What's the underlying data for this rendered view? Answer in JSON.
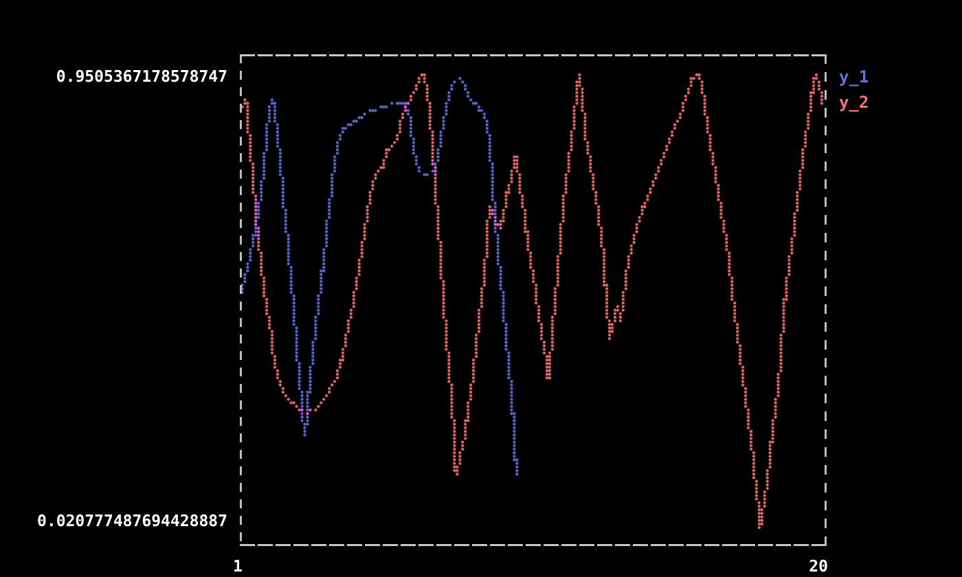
{
  "figure": {
    "background": "#000000",
    "border_color": "#c0c4ca",
    "text_color": "#ffffff"
  },
  "axes": {
    "y_max_label": "0.9505367178578747",
    "y_min_label": "0.020777487694428887",
    "x_min_label": "1",
    "x_max_label": "20"
  },
  "legend": {
    "position": "outside-right-top",
    "items": [
      {
        "label": "y_1",
        "color": "#6272dd"
      },
      {
        "label": "y_2",
        "color": "#f8736f"
      }
    ]
  },
  "chart_data": {
    "type": "scatter",
    "marker": "dot",
    "grid": false,
    "xlabel": "",
    "ylabel": "",
    "x_range": [
      1,
      20
    ],
    "y_range": [
      0.020777487694428887,
      0.9505367178578747
    ],
    "overlap_color": "#ee64d8",
    "series": [
      {
        "name": "y_1",
        "color": "#6170d9",
        "points": [
          [
            1.04,
            0.496
          ],
          [
            1.16,
            0.524
          ],
          [
            1.27,
            0.55
          ],
          [
            1.38,
            0.583
          ],
          [
            1.49,
            0.616
          ],
          [
            1.58,
            0.648
          ],
          [
            1.67,
            0.69
          ],
          [
            1.76,
            0.738
          ],
          [
            1.84,
            0.789
          ],
          [
            1.93,
            0.848
          ],
          [
            2.0,
            0.879
          ],
          [
            2.07,
            0.9
          ],
          [
            2.13,
            0.879
          ],
          [
            2.22,
            0.841
          ],
          [
            2.29,
            0.792
          ],
          [
            2.38,
            0.738
          ],
          [
            2.44,
            0.693
          ],
          [
            2.51,
            0.648
          ],
          [
            2.58,
            0.606
          ],
          [
            2.64,
            0.555
          ],
          [
            2.71,
            0.51
          ],
          [
            2.78,
            0.461
          ],
          [
            2.84,
            0.409
          ],
          [
            2.91,
            0.358
          ],
          [
            2.98,
            0.306
          ],
          [
            3.04,
            0.257
          ],
          [
            3.11,
            0.208
          ],
          [
            3.18,
            0.24
          ],
          [
            3.24,
            0.288
          ],
          [
            3.31,
            0.334
          ],
          [
            3.4,
            0.386
          ],
          [
            3.49,
            0.437
          ],
          [
            3.58,
            0.485
          ],
          [
            3.67,
            0.536
          ],
          [
            3.76,
            0.583
          ],
          [
            3.84,
            0.637
          ],
          [
            3.93,
            0.687
          ],
          [
            4.02,
            0.733
          ],
          [
            4.11,
            0.775
          ],
          [
            4.2,
            0.809
          ],
          [
            4.31,
            0.831
          ],
          [
            4.44,
            0.841
          ],
          [
            4.6,
            0.849
          ],
          [
            4.78,
            0.856
          ],
          [
            4.98,
            0.863
          ],
          [
            5.2,
            0.872
          ],
          [
            5.42,
            0.877
          ],
          [
            5.67,
            0.883
          ],
          [
            5.93,
            0.887
          ],
          [
            6.2,
            0.888
          ],
          [
            6.38,
            0.886
          ],
          [
            6.47,
            0.87
          ],
          [
            6.56,
            0.839
          ],
          [
            6.64,
            0.803
          ],
          [
            6.73,
            0.769
          ],
          [
            6.82,
            0.751
          ],
          [
            6.96,
            0.744
          ],
          [
            7.11,
            0.742
          ],
          [
            7.24,
            0.747
          ],
          [
            7.36,
            0.761
          ],
          [
            7.44,
            0.789
          ],
          [
            7.51,
            0.815
          ],
          [
            7.6,
            0.848
          ],
          [
            7.69,
            0.876
          ],
          [
            7.78,
            0.907
          ],
          [
            7.87,
            0.929
          ],
          [
            7.98,
            0.935
          ],
          [
            8.11,
            0.937
          ],
          [
            8.22,
            0.932
          ],
          [
            8.31,
            0.918
          ],
          [
            8.4,
            0.904
          ],
          [
            8.51,
            0.894
          ],
          [
            8.64,
            0.886
          ],
          [
            8.78,
            0.877
          ],
          [
            8.91,
            0.866
          ],
          [
            9.0,
            0.848
          ],
          [
            9.07,
            0.822
          ],
          [
            9.13,
            0.78
          ],
          [
            9.18,
            0.735
          ],
          [
            9.24,
            0.679
          ],
          [
            9.31,
            0.626
          ],
          [
            9.38,
            0.578
          ],
          [
            9.44,
            0.535
          ],
          [
            9.51,
            0.493
          ],
          [
            9.58,
            0.447
          ],
          [
            9.64,
            0.4
          ],
          [
            9.71,
            0.355
          ],
          [
            9.78,
            0.31
          ],
          [
            9.82,
            0.271
          ],
          [
            9.87,
            0.231
          ],
          [
            9.91,
            0.189
          ],
          [
            9.95,
            0.13
          ]
        ]
      },
      {
        "name": "y_2",
        "color": "#f2716d",
        "points": [
          [
            1.04,
            0.873
          ],
          [
            1.22,
            0.893
          ],
          [
            1.38,
            0.784
          ],
          [
            1.53,
            0.679
          ],
          [
            1.67,
            0.581
          ],
          [
            1.82,
            0.503
          ],
          [
            1.98,
            0.44
          ],
          [
            2.15,
            0.356
          ],
          [
            2.33,
            0.313
          ],
          [
            2.55,
            0.285
          ],
          [
            2.82,
            0.268
          ],
          [
            3.04,
            0.261
          ],
          [
            3.2,
            0.257
          ],
          [
            3.44,
            0.264
          ],
          [
            3.71,
            0.28
          ],
          [
            3.95,
            0.303
          ],
          [
            4.15,
            0.33
          ],
          [
            4.33,
            0.367
          ],
          [
            4.51,
            0.429
          ],
          [
            4.68,
            0.482
          ],
          [
            4.86,
            0.545
          ],
          [
            5.02,
            0.609
          ],
          [
            5.17,
            0.675
          ],
          [
            5.31,
            0.724
          ],
          [
            5.46,
            0.749
          ],
          [
            5.64,
            0.761
          ],
          [
            5.79,
            0.792
          ],
          [
            5.95,
            0.801
          ],
          [
            6.1,
            0.814
          ],
          [
            6.24,
            0.851
          ],
          [
            6.39,
            0.88
          ],
          [
            6.55,
            0.898
          ],
          [
            6.7,
            0.92
          ],
          [
            6.84,
            0.939
          ],
          [
            6.93,
            0.951
          ],
          [
            7.04,
            0.928
          ],
          [
            7.13,
            0.887
          ],
          [
            7.21,
            0.834
          ],
          [
            7.28,
            0.77
          ],
          [
            7.35,
            0.71
          ],
          [
            7.44,
            0.637
          ],
          [
            7.53,
            0.555
          ],
          [
            7.61,
            0.482
          ],
          [
            7.7,
            0.409
          ],
          [
            7.79,
            0.341
          ],
          [
            7.88,
            0.274
          ],
          [
            7.95,
            0.201
          ],
          [
            8.0,
            0.133
          ],
          [
            8.1,
            0.154
          ],
          [
            8.24,
            0.192
          ],
          [
            8.35,
            0.236
          ],
          [
            8.46,
            0.288
          ],
          [
            8.57,
            0.341
          ],
          [
            8.68,
            0.405
          ],
          [
            8.77,
            0.461
          ],
          [
            8.86,
            0.503
          ],
          [
            8.95,
            0.564
          ],
          [
            9.02,
            0.623
          ],
          [
            9.08,
            0.679
          ],
          [
            9.19,
            0.662
          ],
          [
            9.31,
            0.642
          ],
          [
            9.42,
            0.634
          ],
          [
            9.53,
            0.658
          ],
          [
            9.64,
            0.696
          ],
          [
            9.77,
            0.732
          ],
          [
            9.88,
            0.763
          ],
          [
            9.95,
            0.783
          ],
          [
            10.06,
            0.727
          ],
          [
            10.17,
            0.682
          ],
          [
            10.28,
            0.63
          ],
          [
            10.39,
            0.578
          ],
          [
            10.51,
            0.535
          ],
          [
            10.6,
            0.496
          ],
          [
            10.69,
            0.451
          ],
          [
            10.78,
            0.415
          ],
          [
            10.87,
            0.384
          ],
          [
            10.93,
            0.355
          ],
          [
            10.98,
            0.324
          ],
          [
            11.07,
            0.377
          ],
          [
            11.13,
            0.429
          ],
          [
            11.2,
            0.475
          ],
          [
            11.27,
            0.531
          ],
          [
            11.36,
            0.595
          ],
          [
            11.44,
            0.658
          ],
          [
            11.53,
            0.714
          ],
          [
            11.62,
            0.759
          ],
          [
            11.71,
            0.799
          ],
          [
            11.8,
            0.845
          ],
          [
            11.89,
            0.904
          ],
          [
            11.98,
            0.951
          ],
          [
            12.07,
            0.907
          ],
          [
            12.16,
            0.851
          ],
          [
            12.24,
            0.803
          ],
          [
            12.36,
            0.759
          ],
          [
            12.47,
            0.717
          ],
          [
            12.58,
            0.675
          ],
          [
            12.67,
            0.637
          ],
          [
            12.76,
            0.583
          ],
          [
            12.82,
            0.527
          ],
          [
            12.89,
            0.468
          ],
          [
            12.96,
            0.423
          ],
          [
            12.98,
            0.408
          ],
          [
            13.07,
            0.43
          ],
          [
            13.16,
            0.457
          ],
          [
            13.22,
            0.475
          ],
          [
            13.31,
            0.445
          ],
          [
            13.4,
            0.479
          ],
          [
            13.49,
            0.531
          ],
          [
            13.62,
            0.578
          ],
          [
            13.76,
            0.616
          ],
          [
            13.89,
            0.648
          ],
          [
            14.02,
            0.669
          ],
          [
            14.16,
            0.693
          ],
          [
            14.31,
            0.714
          ],
          [
            14.44,
            0.738
          ],
          [
            14.58,
            0.761
          ],
          [
            14.71,
            0.78
          ],
          [
            14.84,
            0.803
          ],
          [
            14.98,
            0.822
          ],
          [
            15.11,
            0.843
          ],
          [
            15.24,
            0.862
          ],
          [
            15.38,
            0.89
          ],
          [
            15.51,
            0.914
          ],
          [
            15.64,
            0.939
          ],
          [
            15.76,
            0.947
          ],
          [
            15.87,
            0.951
          ],
          [
            15.96,
            0.921
          ],
          [
            16.04,
            0.883
          ],
          [
            16.13,
            0.848
          ],
          [
            16.24,
            0.799
          ],
          [
            16.36,
            0.756
          ],
          [
            16.47,
            0.71
          ],
          [
            16.58,
            0.665
          ],
          [
            16.69,
            0.626
          ],
          [
            16.78,
            0.588
          ],
          [
            16.87,
            0.538
          ],
          [
            16.96,
            0.489
          ],
          [
            17.04,
            0.443
          ],
          [
            17.13,
            0.4
          ],
          [
            17.22,
            0.355
          ],
          [
            17.31,
            0.313
          ],
          [
            17.4,
            0.271
          ],
          [
            17.49,
            0.226
          ],
          [
            17.58,
            0.175
          ],
          [
            17.67,
            0.116
          ],
          [
            17.76,
            0.071
          ],
          [
            17.82,
            0.035
          ],
          [
            17.84,
            0.021
          ],
          [
            17.91,
            0.049
          ],
          [
            17.98,
            0.083
          ],
          [
            18.07,
            0.123
          ],
          [
            18.16,
            0.173
          ],
          [
            18.24,
            0.218
          ],
          [
            18.33,
            0.264
          ],
          [
            18.42,
            0.316
          ],
          [
            18.49,
            0.363
          ],
          [
            18.53,
            0.409
          ],
          [
            18.6,
            0.465
          ],
          [
            18.69,
            0.517
          ],
          [
            18.78,
            0.564
          ],
          [
            18.87,
            0.609
          ],
          [
            18.96,
            0.648
          ],
          [
            19.04,
            0.693
          ],
          [
            19.13,
            0.738
          ],
          [
            19.22,
            0.78
          ],
          [
            19.31,
            0.825
          ],
          [
            19.4,
            0.864
          ],
          [
            19.49,
            0.901
          ],
          [
            19.58,
            0.935
          ],
          [
            19.64,
            0.951
          ],
          [
            19.73,
            0.928
          ],
          [
            19.8,
            0.903
          ],
          [
            19.84,
            0.889
          ]
        ]
      }
    ]
  }
}
